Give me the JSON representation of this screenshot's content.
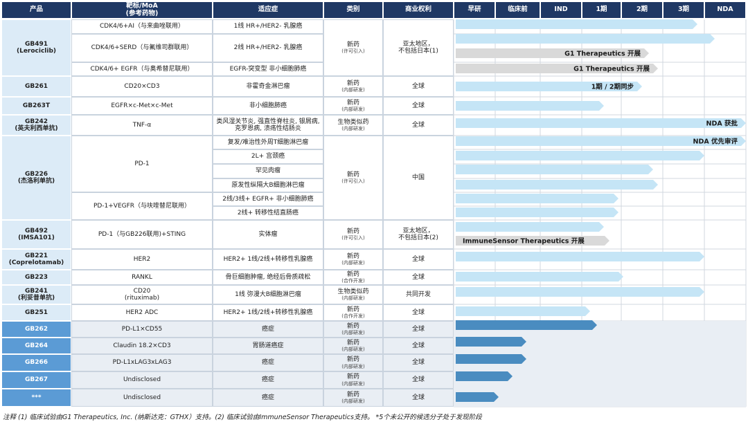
{
  "header": {
    "columns": [
      "产品",
      "靶标/MoA",
      "适应症",
      "类别",
      "商业权利",
      "早研",
      "临床前",
      "IND",
      "1期",
      "2期",
      "3期",
      "NDA"
    ],
    "moa_note": "(参考药物)"
  },
  "products": [
    {
      "name": "GB491",
      "alias": "(Lerociclib)",
      "targets": [
        "CDK4/6+AI（与来曲唑联用）",
        "CDK4/6+SERD（与氟维司群联用）",
        "CDK4/6+ EGFR（与奥希替尼联用）"
      ],
      "indications": [
        "1线 HR+/HER2-  乳腺癌",
        "2线 HR+/HER2-  乳腺癌",
        "EGFR-突变型 非小细胞肺癌"
      ],
      "category": "新药",
      "category_note": "(许可引入)",
      "rights": [
        "亚太地区，",
        "不包括日本(1)"
      ],
      "bar_labels": [
        "G1 Therapeutics 开展",
        "G1 Therapeutics 开展"
      ]
    },
    {
      "name": "GB261",
      "targets": [
        "CD20×CD3"
      ],
      "indications": [
        "非霍奇金淋巴瘤"
      ],
      "category": "新药",
      "category_note": "(内部研发)",
      "rights": [
        "全球"
      ],
      "bar_labels": [
        "1期 / 2期同步"
      ]
    },
    {
      "name": "GB263T",
      "targets": [
        "EGFR×c-Met×c-Met"
      ],
      "indications": [
        "非小细胞肺癌"
      ],
      "category": "新药",
      "category_note": "(内部研发)",
      "rights": [
        "全球"
      ]
    },
    {
      "name": "GB242",
      "alias": "(英夫利西单抗)",
      "targets": [
        "TNF-α"
      ],
      "indications": [
        "类风湿关节炎, 强直性脊柱炎, 银屑病, 克罗恩病, 溃疡性结肠炎"
      ],
      "category": "生物类似药",
      "category_note": "(内部研发)",
      "rights": [
        "全球"
      ],
      "bar_labels": [
        "NDA 获批"
      ]
    },
    {
      "name": "GB226",
      "alias": "(杰洛利单抗)",
      "targets": [
        "PD-1",
        "PD-1+VEGFR（与呋喹替尼联用）"
      ],
      "indications": [
        "复发/难治性外周T细胞淋巴瘤",
        "2L+ 宫颈癌",
        "罕见肉瘤",
        "原发性纵隔大B细胞淋巴瘤",
        "2线/3线+ EGFR+ 非小细胞肺癌",
        "2线+ 转移性结直肠癌"
      ],
      "category": "新药",
      "category_note": "(许可引入)",
      "rights": [
        "中国"
      ],
      "bar_labels": [
        "NDA 优先审评"
      ]
    },
    {
      "name": "GB492",
      "alias": "(IMSA101)",
      "targets": [
        "PD-1（与GB226联用)+STING"
      ],
      "indications": [
        "实体瘤"
      ],
      "category": "新药",
      "category_note": "(许可引入)",
      "rights": [
        "亚太地区，",
        "不包括日本(2)"
      ],
      "bar_labels": [
        "ImmuneSensor Therapeutics 开展"
      ]
    },
    {
      "name": "GB221",
      "alias": "(Coprelotamab)",
      "targets": [
        "HER2"
      ],
      "indications": [
        "HER2+ 1线/2线+转移性乳腺癌"
      ],
      "category": "新药",
      "category_note": "(内部研发)",
      "rights": [
        "全球"
      ]
    },
    {
      "name": "GB223",
      "targets": [
        "RANKL"
      ],
      "indications": [
        "骨巨细胞肿瘤, 绝经后骨质疏松"
      ],
      "category": "新药",
      "category_note": "(合作开发)",
      "rights": [
        "全球"
      ]
    },
    {
      "name": "GB241",
      "alias": "(利妥昔单抗)",
      "targets": [
        "CD20"
      ],
      "target_note": "(rituximab)",
      "indications": [
        "1线 弥漫大B细胞淋巴瘤"
      ],
      "category": "生物类似药",
      "category_note": "(内部研发)",
      "rights": [
        "共同开发"
      ]
    },
    {
      "name": "GB251",
      "targets": [
        "HER2  ADC"
      ],
      "indications": [
        "HER2+ 1线/2线+转移性乳腺癌"
      ],
      "category": "新药",
      "category_note": "(合作开发)",
      "rights": [
        "全球"
      ]
    },
    {
      "name": "GB262",
      "targets": [
        "PD-L1×CD55"
      ],
      "indications": [
        "癌症"
      ],
      "category": "新药",
      "category_note": "(内部研发)",
      "rights": [
        "全球"
      ]
    },
    {
      "name": "GB264",
      "targets": [
        "Claudin 18.2×CD3"
      ],
      "indications": [
        "胃肠道癌症"
      ],
      "category": "新药",
      "category_note": "(内部研发)",
      "rights": [
        "全球"
      ]
    },
    {
      "name": "GB266",
      "targets": [
        "PD-L1xLAG3xLAG3"
      ],
      "indications": [
        "癌症"
      ],
      "category": "新药",
      "category_note": "(内部研发)",
      "rights": [
        "全球"
      ]
    },
    {
      "name": "GB267",
      "targets": [
        "Undisclosed"
      ],
      "indications": [
        "癌症"
      ],
      "category": "新药",
      "category_note": "(内部研发)",
      "rights": [
        "全球"
      ]
    },
    {
      "name": "***",
      "targets": [
        "Undisclosed"
      ],
      "indications": [
        "癌症"
      ],
      "category": "新药",
      "category_note": "(内部研发)",
      "rights": [
        "全球"
      ]
    }
  ],
  "footer": {
    "note": "注释 (1) 临床试验由G1 Therapeutics, Inc. (纳斯达克：GTHX）支持。(2) 临床试验由ImmuneSensor Therapeutics支持。 *5个未公开的候选分子处于发现阶段"
  }
}
